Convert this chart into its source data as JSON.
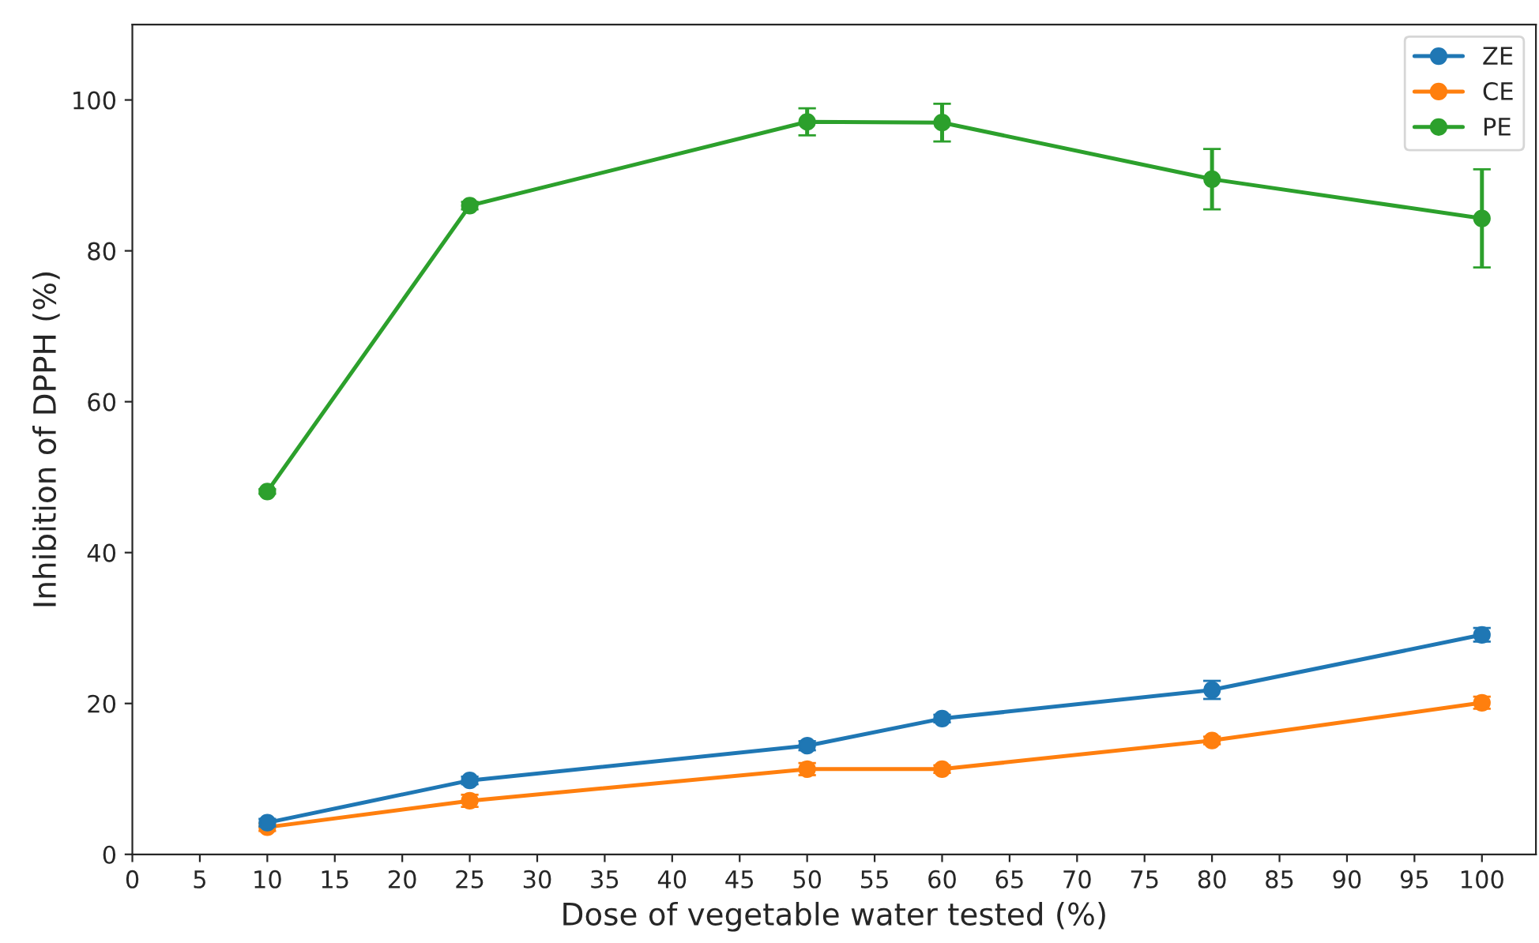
{
  "chart_data": {
    "type": "line",
    "xlabel": "Dose of vegetable water tested (%)",
    "ylabel": "Inhibition of DPPH (%)",
    "x": [
      10,
      25,
      50,
      60,
      80,
      100
    ],
    "series": [
      {
        "name": "ZE",
        "color": "#1f77b4",
        "values": [
          4.2,
          9.8,
          14.4,
          18.0,
          21.8,
          29.1
        ],
        "errors": [
          0.5,
          0.5,
          0.6,
          0.5,
          1.2,
          0.9
        ]
      },
      {
        "name": "CE",
        "color": "#ff7f0e",
        "values": [
          3.6,
          7.1,
          11.3,
          11.3,
          15.1,
          20.1
        ],
        "errors": [
          0.5,
          0.8,
          0.8,
          0.5,
          0.5,
          0.8
        ]
      },
      {
        "name": "PE",
        "color": "#2ca02c",
        "values": [
          48.1,
          86.0,
          97.1,
          97.0,
          89.5,
          84.3
        ],
        "errors": [
          0.3,
          0.5,
          1.8,
          2.5,
          4.0,
          6.5
        ]
      }
    ],
    "xlim": [
      0,
      104
    ],
    "xticks": [
      0,
      5,
      10,
      15,
      20,
      25,
      30,
      35,
      40,
      45,
      50,
      55,
      60,
      65,
      70,
      75,
      80,
      85,
      90,
      95,
      100
    ],
    "ylim": [
      0,
      110
    ],
    "yticks": [
      0,
      20,
      40,
      60,
      80,
      100
    ],
    "marker": "circle",
    "line_style": "solid",
    "legend": "top right",
    "grid": false
  }
}
